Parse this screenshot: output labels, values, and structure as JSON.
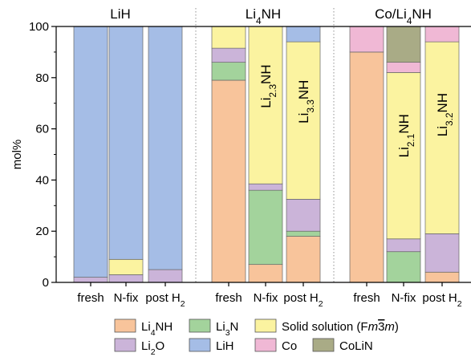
{
  "chart_data": {
    "type": "bar",
    "stacked": true,
    "ylabel": "mol%",
    "ylim": [
      0,
      100
    ],
    "yticks": [
      0,
      20,
      40,
      60,
      80,
      100
    ],
    "groups": [
      {
        "title": "LiH",
        "title_base": "Li",
        "title_sub": "",
        "title_tail": "H",
        "bars": [
          {
            "label": "fresh",
            "stack": [
              [
                "Li2O",
                2
              ],
              [
                "LiH",
                98
              ]
            ]
          },
          {
            "label": "N-fix",
            "stack": [
              [
                "Li2O",
                3
              ],
              [
                "SS",
                6
              ],
              [
                "LiH",
                91
              ]
            ]
          },
          {
            "label": "post H2",
            "stack": [
              [
                "Li2O",
                5
              ],
              [
                "LiH",
                95
              ]
            ]
          }
        ]
      },
      {
        "title": "Li4NH",
        "title_base": "Li",
        "title_sub": "4",
        "title_tail": "NH",
        "bars": [
          {
            "label": "fresh",
            "stack": [
              [
                "Li4NH",
                79
              ],
              [
                "Li3N",
                7
              ],
              [
                "Li2O",
                5.5
              ],
              [
                "SS",
                8.5
              ]
            ]
          },
          {
            "label": "N-fix",
            "stack": [
              [
                "Li4NH",
                7
              ],
              [
                "Li3N",
                29
              ],
              [
                "Li2O",
                2.5
              ],
              [
                "SS",
                61.5
              ]
            ],
            "solution": "Li2.3NH"
          },
          {
            "label": "post H2",
            "stack": [
              [
                "Li4NH",
                18
              ],
              [
                "Li3N",
                2
              ],
              [
                "Li2O",
                12.5
              ],
              [
                "SS",
                61.5
              ],
              [
                "LiH",
                6
              ]
            ],
            "solution": "Li3.3NH"
          }
        ]
      },
      {
        "title": "Co/Li4NH",
        "title_base": "Co/Li",
        "title_sub": "4",
        "title_tail": "NH",
        "bars": [
          {
            "label": "fresh",
            "stack": [
              [
                "Li4NH",
                90
              ],
              [
                "Co",
                10
              ]
            ]
          },
          {
            "label": "N-fix",
            "stack": [
              [
                "Li3N",
                12
              ],
              [
                "Li2O",
                5
              ],
              [
                "SS",
                65
              ],
              [
                "Co",
                4
              ],
              [
                "CoLiN",
                14
              ]
            ],
            "solution": "Li2.1NH"
          },
          {
            "label": "post H2",
            "stack": [
              [
                "Li4NH",
                4
              ],
              [
                "Li2O",
                15
              ],
              [
                "SS",
                75
              ],
              [
                "Co",
                6
              ]
            ],
            "solution": "Li3.2NH"
          }
        ]
      }
    ],
    "components": [
      {
        "key": "Li4NH",
        "label": "Li4NH",
        "base": "Li",
        "sub": "4",
        "tail": "NH",
        "color": "#f8c49b"
      },
      {
        "key": "Li3N",
        "label": "Li3N",
        "base": "Li",
        "sub": "3",
        "tail": "N",
        "color": "#a3d39c"
      },
      {
        "key": "SS",
        "label": "Solid solution (Fm3m)",
        "color": "#fbf3a0"
      },
      {
        "key": "Li2O",
        "label": "Li2O",
        "base": "Li",
        "sub": "2",
        "tail": "O",
        "color": "#cbb4d9"
      },
      {
        "key": "LiH",
        "label": "LiH",
        "base": "LiH",
        "sub": "",
        "tail": "",
        "color": "#a5bde6"
      },
      {
        "key": "Co",
        "label": "Co",
        "base": "Co",
        "sub": "",
        "tail": "",
        "color": "#f0b8d5"
      },
      {
        "key": "CoLiN",
        "label": "CoLiN",
        "base": "CoLiN",
        "sub": "",
        "tail": "",
        "color": "#a9ab86"
      }
    ]
  }
}
